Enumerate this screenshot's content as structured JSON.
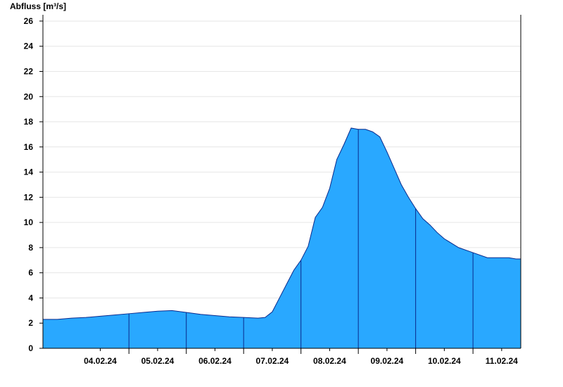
{
  "chart_data": {
    "type": "area",
    "title": "",
    "xlabel": "",
    "ylabel": "Abfluss [m³/s]",
    "ylim": [
      0,
      26.5
    ],
    "yticks": [
      0,
      2,
      4,
      6,
      8,
      10,
      12,
      14,
      16,
      18,
      20,
      22,
      24,
      26
    ],
    "x_start": "03.02.24 12:00",
    "x_end": "11.02.24 20:00",
    "xticks": [
      "04.02.24",
      "05.02.24",
      "06.02.24",
      "07.02.24",
      "08.02.24",
      "09.02.24",
      "10.02.24",
      "11.02.24"
    ],
    "grid": true,
    "legend": "none",
    "fill_color": "#29a8ff",
    "line_color": "#0a2a8c",
    "series": [
      {
        "x": [
          "03.02.24 12:00",
          "03.02.24 18:00",
          "04.02.24 00:00",
          "04.02.24 06:00",
          "04.02.24 12:00",
          "04.02.24 18:00",
          "05.02.24 00:00",
          "05.02.24 06:00",
          "05.02.24 12:00",
          "05.02.24 18:00",
          "06.02.24 00:00",
          "06.02.24 06:00",
          "06.02.24 12:00",
          "06.02.24 18:00",
          "07.02.24 00:00",
          "07.02.24 06:00",
          "07.02.24 09:00",
          "07.02.24 12:00",
          "07.02.24 15:00",
          "07.02.24 18:00",
          "07.02.24 21:00",
          "08.02.24 00:00",
          "08.02.24 03:00",
          "08.02.24 06:00",
          "08.02.24 09:00",
          "08.02.24 12:00",
          "08.02.24 15:00",
          "08.02.24 18:00",
          "08.02.24 21:00",
          "09.02.24 00:00",
          "09.02.24 03:00",
          "09.02.24 06:00",
          "09.02.24 09:00",
          "09.02.24 12:00",
          "09.02.24 15:00",
          "09.02.24 18:00",
          "09.02.24 21:00",
          "10.02.24 00:00",
          "10.02.24 03:00",
          "10.02.24 06:00",
          "10.02.24 09:00",
          "10.02.24 12:00",
          "10.02.24 18:00",
          "11.02.24 00:00",
          "11.02.24 06:00",
          "11.02.24 12:00",
          "11.02.24 15:00",
          "11.02.24 18:00",
          "11.02.24 20:00"
        ],
        "values": [
          2.3,
          2.3,
          2.4,
          2.45,
          2.55,
          2.65,
          2.75,
          2.85,
          2.95,
          3.0,
          2.85,
          2.7,
          2.6,
          2.5,
          2.45,
          2.4,
          2.45,
          2.9,
          4.0,
          5.1,
          6.2,
          7.0,
          8.1,
          10.4,
          11.2,
          12.7,
          15.0,
          16.2,
          17.5,
          17.4,
          17.4,
          17.2,
          16.8,
          15.6,
          14.3,
          13.0,
          12.0,
          11.1,
          10.3,
          9.8,
          9.2,
          8.7,
          8.0,
          7.6,
          7.2,
          7.2,
          7.2,
          7.1,
          7.1
        ]
      }
    ]
  }
}
